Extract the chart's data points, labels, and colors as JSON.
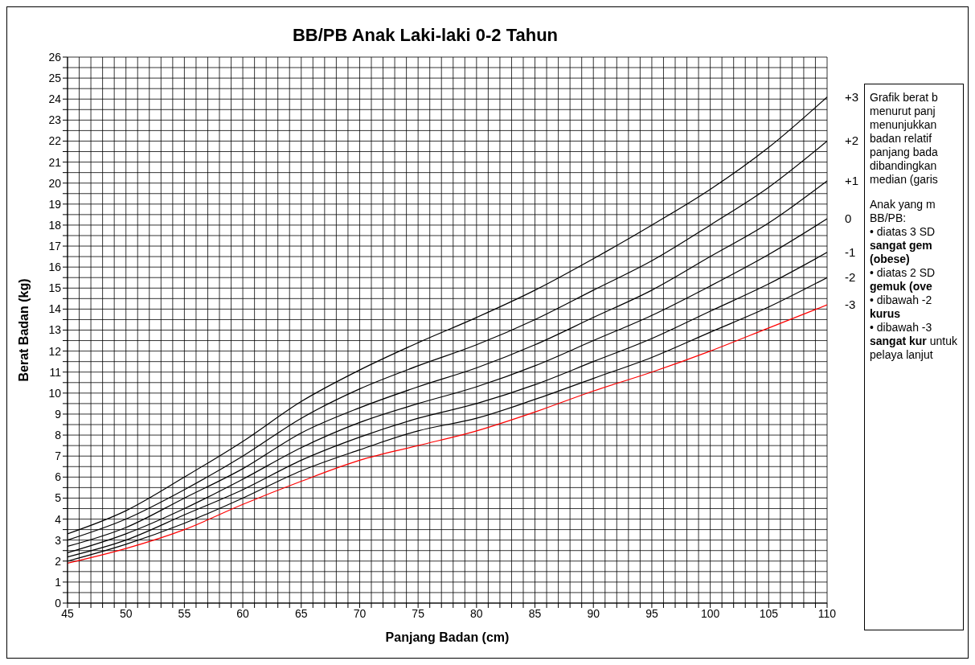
{
  "chart_data": {
    "type": "line",
    "title": "BB/PB Anak Laki-laki 0-2 Tahun",
    "xlabel": "Panjang Badan (cm)",
    "ylabel": "Berat Badan (kg)",
    "x": [
      45,
      50,
      55,
      60,
      65,
      70,
      75,
      80,
      85,
      90,
      95,
      100,
      105,
      110
    ],
    "series": [
      {
        "name": "+3",
        "color": "#000000",
        "values": [
          3.3,
          4.4,
          6.0,
          7.7,
          9.6,
          11.1,
          12.4,
          13.6,
          14.9,
          16.4,
          18.0,
          19.7,
          21.7,
          24.1
        ]
      },
      {
        "name": "+2",
        "color": "#000000",
        "values": [
          3.0,
          4.0,
          5.4,
          7.0,
          8.8,
          10.2,
          11.3,
          12.3,
          13.5,
          14.9,
          16.3,
          18.0,
          19.8,
          22.0
        ]
      },
      {
        "name": "+1",
        "color": "#000000",
        "values": [
          2.7,
          3.6,
          5.0,
          6.4,
          8.1,
          9.3,
          10.3,
          11.2,
          12.3,
          13.6,
          14.9,
          16.5,
          18.1,
          20.1
        ]
      },
      {
        "name": "0",
        "color": "#000000",
        "values": [
          2.4,
          3.3,
          4.5,
          5.9,
          7.4,
          8.6,
          9.5,
          10.3,
          11.3,
          12.5,
          13.7,
          15.1,
          16.6,
          18.3
        ]
      },
      {
        "name": "-1",
        "color": "#000000",
        "values": [
          2.2,
          3.0,
          4.2,
          5.4,
          6.8,
          7.9,
          8.8,
          9.5,
          10.4,
          11.5,
          12.6,
          13.9,
          15.2,
          16.7
        ]
      },
      {
        "name": "-2",
        "color": "#000000",
        "values": [
          2.0,
          2.8,
          3.8,
          5.0,
          6.3,
          7.3,
          8.2,
          8.8,
          9.7,
          10.7,
          11.7,
          12.9,
          14.1,
          15.5
        ]
      },
      {
        "name": "-3",
        "color": "#ff0000",
        "values": [
          1.9,
          2.6,
          3.5,
          4.7,
          5.8,
          6.8,
          7.5,
          8.2,
          9.1,
          10.1,
          11.0,
          12.0,
          13.1,
          14.2
        ]
      }
    ],
    "xlim": [
      45,
      110
    ],
    "xticks": [
      45,
      {
        "value": 46,
        "label": null
      },
      {
        "value": 47,
        "label": null
      },
      {
        "value": 48,
        "label": null
      },
      {
        "value": 49,
        "label": null
      },
      50,
      {
        "value": 51,
        "label": null
      },
      {
        "value": 52,
        "label": null
      },
      {
        "value": 53,
        "label": null
      },
      {
        "value": 54,
        "label": null
      },
      55,
      {
        "value": 56,
        "label": null
      },
      {
        "value": 57,
        "label": null
      },
      {
        "value": 58,
        "label": null
      },
      {
        "value": 59,
        "label": null
      },
      60,
      {
        "value": 61,
        "label": null
      },
      {
        "value": 62,
        "label": null
      },
      {
        "value": 63,
        "label": null
      },
      {
        "value": 64,
        "label": null
      },
      65,
      {
        "value": 66,
        "label": null
      },
      {
        "value": 67,
        "label": null
      },
      {
        "value": 68,
        "label": null
      },
      {
        "value": 69,
        "label": null
      },
      70,
      {
        "value": 71,
        "label": null
      },
      {
        "value": 72,
        "label": null
      },
      {
        "value": 73,
        "label": null
      },
      {
        "value": 74,
        "label": null
      },
      75,
      {
        "value": 76,
        "label": null
      },
      {
        "value": 77,
        "label": null
      },
      {
        "value": 78,
        "label": null
      },
      {
        "value": 79,
        "label": null
      },
      80,
      {
        "value": 81,
        "label": null
      },
      {
        "value": 82,
        "label": null
      },
      {
        "value": 83,
        "label": null
      },
      {
        "value": 84,
        "label": null
      },
      85,
      {
        "value": 86,
        "label": null
      },
      {
        "value": 87,
        "label": null
      },
      {
        "value": 88,
        "label": null
      },
      {
        "value": 89,
        "label": null
      },
      90,
      {
        "value": 91,
        "label": null
      },
      {
        "value": 92,
        "label": null
      },
      {
        "value": 93,
        "label": null
      },
      {
        "value": 94,
        "label": null
      },
      95,
      {
        "value": 96,
        "label": null
      },
      {
        "value": 97,
        "label": null
      },
      {
        "value": 98,
        "label": null
      },
      {
        "value": 99,
        "label": null
      },
      100,
      {
        "value": 101,
        "label": null
      },
      {
        "value": 102,
        "label": null
      },
      {
        "value": 103,
        "label": null
      },
      {
        "value": 104,
        "label": null
      },
      105,
      {
        "value": 106,
        "label": null
      },
      {
        "value": 107,
        "label": null
      },
      {
        "value": 108,
        "label": null
      },
      {
        "value": 109,
        "label": null
      },
      110
    ],
    "ylim": [
      0,
      26
    ],
    "yticks": [
      0,
      {
        "value": 0.5,
        "label": null
      },
      1,
      {
        "value": 1.5,
        "label": null
      },
      2,
      {
        "value": 2.5,
        "label": null
      },
      3,
      {
        "value": 3.5,
        "label": null
      },
      4,
      {
        "value": 4.5,
        "label": null
      },
      5,
      {
        "value": 5.5,
        "label": null
      },
      6,
      {
        "value": 6.5,
        "label": null
      },
      7,
      {
        "value": 7.5,
        "label": null
      },
      8,
      {
        "value": 8.5,
        "label": null
      },
      9,
      {
        "value": 9.5,
        "label": null
      },
      10,
      {
        "value": 10.5,
        "label": null
      },
      11,
      {
        "value": 11.5,
        "label": null
      },
      12,
      {
        "value": 12.5,
        "label": null
      },
      13,
      {
        "value": 13.5,
        "label": null
      },
      14,
      {
        "value": 14.5,
        "label": null
      },
      15,
      {
        "value": 15.5,
        "label": null
      },
      16,
      {
        "value": 16.5,
        "label": null
      },
      17,
      {
        "value": 17.5,
        "label": null
      },
      18,
      {
        "value": 18.5,
        "label": null
      },
      19,
      {
        "value": 19.5,
        "label": null
      },
      20,
      {
        "value": 20.5,
        "label": null
      },
      21,
      {
        "value": 21.5,
        "label": null
      },
      22,
      {
        "value": 22.5,
        "label": null
      },
      23,
      {
        "value": 23.5,
        "label": null
      },
      24,
      {
        "value": 24.5,
        "label": null
      },
      25,
      {
        "value": 25.5,
        "label": null
      },
      26
    ],
    "grid": true,
    "legend": false,
    "marker": "none",
    "line_style": "solid",
    "annotations": [
      "Grafik berat b menurut panj menunjukkan badan relatif panjang bada dibandingkan median (garis",
      "Anak yang m BB/PB:",
      "• diatas 3 SD **sangat gem (obese)**",
      "• diatas 2 SD **gemuk (ove**",
      "• dibawah -2 **kurus**",
      "• dibawah -3 **sangat kur** untuk pelaya lanjut"
    ]
  }
}
